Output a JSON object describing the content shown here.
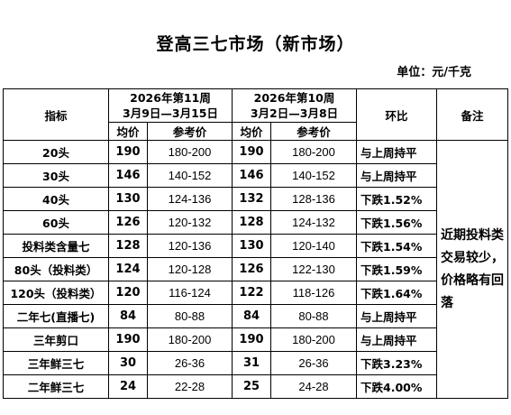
{
  "title": "登高三七市场（新市场）",
  "unit": "单位：元/千克",
  "table": {
    "header": {
      "indicator": "指标",
      "week1_line1": "2026年第11周",
      "week1_line2": "3月9日—3月15日",
      "week2_line1": "2026年第10周",
      "week2_line2": "3月2日—3月8日",
      "change": "环比",
      "remark": "备注",
      "avg_price": "均价",
      "ref_price": "参考价"
    },
    "rows": [
      {
        "indicator": "20头",
        "avg1": "190",
        "ref1": "180-200",
        "avg2": "190",
        "ref2": "180-200",
        "change": "与上周持平"
      },
      {
        "indicator": "30头",
        "avg1": "146",
        "ref1": "140-152",
        "avg2": "146",
        "ref2": "140-152",
        "change": "与上周持平"
      },
      {
        "indicator": "40头",
        "avg1": "130",
        "ref1": "124-136",
        "avg2": "132",
        "ref2": "128-136",
        "change": "下跌1.52%"
      },
      {
        "indicator": "60头",
        "avg1": "126",
        "ref1": "120-132",
        "avg2": "128",
        "ref2": "124-132",
        "change": "下跌1.56%"
      },
      {
        "indicator": "投料类含量七",
        "avg1": "128",
        "ref1": "120-136",
        "avg2": "130",
        "ref2": "120-140",
        "change": "下跌1.54%"
      },
      {
        "indicator": "80头（投料类）",
        "avg1": "124",
        "ref1": "120-128",
        "avg2": "126",
        "ref2": "122-130",
        "change": "下跌1.59%"
      },
      {
        "indicator": "120头（投料类）",
        "avg1": "120",
        "ref1": "116-124",
        "avg2": "122",
        "ref2": "118-126",
        "change": "下跌1.64%"
      },
      {
        "indicator": "二年七(直播七)",
        "avg1": "84",
        "ref1": "80-88",
        "avg2": "84",
        "ref2": "80-88",
        "change": "与上周持平"
      },
      {
        "indicator": "三年剪口",
        "avg1": "190",
        "ref1": "180-200",
        "avg2": "190",
        "ref2": "180-200",
        "change": "与上周持平"
      },
      {
        "indicator": "三年鲜三七",
        "avg1": "30",
        "ref1": "26-36",
        "avg2": "31",
        "ref2": "26-36",
        "change": "下跌3.23%"
      },
      {
        "indicator": "二年鲜三七",
        "avg1": "24",
        "ref1": "22-28",
        "avg2": "25",
        "ref2": "24-28",
        "change": "下跌4.00%"
      }
    ],
    "remark_text": "近期投料类交易较少，价格略有回落"
  }
}
